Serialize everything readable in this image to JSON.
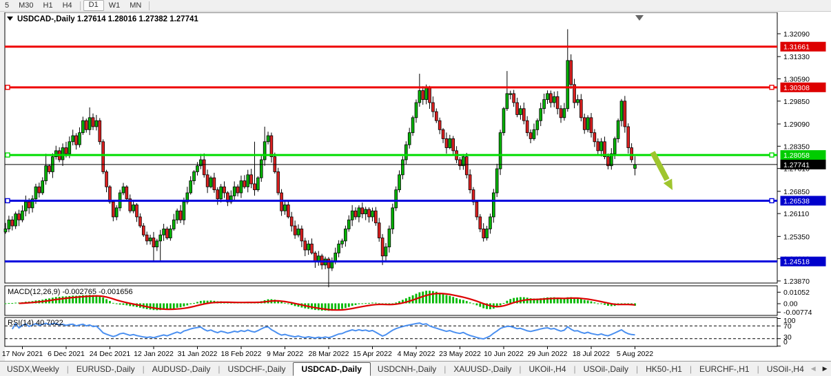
{
  "toolbar": {
    "timeframes": [
      "5",
      "M30",
      "H1",
      "H4",
      "D1",
      "W1",
      "MN"
    ],
    "active": "D1"
  },
  "chart": {
    "symbol": "USDCAD-,Daily",
    "ohlc_display": "1.27614 1.28016 1.27382 1.27741",
    "title_arrow_icon": "down-triangle",
    "shift_marker_icon": "down-triangle"
  },
  "chart_data": {
    "type": "candlestick",
    "symbol": "USDCAD",
    "timeframe": "Daily",
    "x_labels": [
      "17 Nov 2021",
      "6 Dec 2021",
      "24 Dec 2021",
      "12 Jan 2022",
      "31 Jan 2022",
      "18 Feb 2022",
      "9 Mar 2022",
      "28 Mar 2022",
      "15 Apr 2022",
      "4 May 2022",
      "23 May 2022",
      "10 Jun 2022",
      "29 Jun 2022",
      "18 Jul 2022",
      "5 Aug 2022"
    ],
    "y_ticks": [
      1.3209,
      1.3133,
      1.3059,
      1.2985,
      1.2909,
      1.2835,
      1.2761,
      1.2685,
      1.2611,
      1.2535,
      1.2461,
      1.2387
    ],
    "ylim": [
      1.2345,
      1.324
    ],
    "closes": [
      1.256,
      1.259,
      1.257,
      1.261,
      1.259,
      1.262,
      1.265,
      1.263,
      1.266,
      1.27,
      1.268,
      1.272,
      1.277,
      1.275,
      1.28,
      1.282,
      1.279,
      1.283,
      1.281,
      1.285,
      1.287,
      1.284,
      1.288,
      1.292,
      1.289,
      1.293,
      1.29,
      1.292,
      1.285,
      1.275,
      1.27,
      1.265,
      1.26,
      1.263,
      1.268,
      1.27,
      1.266,
      1.262,
      1.264,
      1.26,
      1.257,
      1.254,
      1.252,
      1.253,
      1.25,
      1.252,
      1.254,
      1.256,
      1.253,
      1.256,
      1.259,
      1.262,
      1.259,
      1.265,
      1.268,
      1.272,
      1.275,
      1.277,
      1.279,
      1.274,
      1.27,
      1.273,
      1.269,
      1.266,
      1.27,
      1.268,
      1.265,
      1.267,
      1.27,
      1.268,
      1.272,
      1.27,
      1.274,
      1.271,
      1.269,
      1.273,
      1.279,
      1.285,
      1.287,
      1.28,
      1.275,
      1.268,
      1.262,
      1.264,
      1.26,
      1.257,
      1.254,
      1.256,
      1.252,
      1.249,
      1.251,
      1.248,
      1.245,
      1.247,
      1.244,
      1.246,
      1.243,
      1.245,
      1.248,
      1.251,
      1.252,
      1.256,
      1.259,
      1.262,
      1.26,
      1.263,
      1.261,
      1.2625,
      1.26,
      1.262,
      1.258,
      1.253,
      1.247,
      1.25,
      1.256,
      1.263,
      1.269,
      1.274,
      1.279,
      1.284,
      1.288,
      1.293,
      1.298,
      1.302,
      1.299,
      1.303,
      1.298,
      1.295,
      1.292,
      1.289,
      1.286,
      1.283,
      1.286,
      1.282,
      1.279,
      1.277,
      1.28,
      1.274,
      1.269,
      1.265,
      1.26,
      1.256,
      1.253,
      1.256,
      1.26,
      1.268,
      1.276,
      1.288,
      1.296,
      1.301,
      1.301,
      1.298,
      1.294,
      1.296,
      1.292,
      1.288,
      1.286,
      1.289,
      1.292,
      1.296,
      1.299,
      1.301,
      1.298,
      1.3,
      1.296,
      1.293,
      1.296,
      1.312,
      1.304,
      1.298,
      1.299,
      1.293,
      1.289,
      1.293,
      1.288,
      1.285,
      1.282,
      1.285,
      1.28,
      1.277,
      1.281,
      1.286,
      1.292,
      1.2985,
      1.29,
      1.283,
      1.279,
      1.2774
    ],
    "wick_overrides": {
      "12": {
        "h": 1.281
      },
      "25": {
        "h": 1.2964
      },
      "44": {
        "l": 1.245
      },
      "46": {
        "l": 1.2455
      },
      "74": {
        "h": 1.285
      },
      "77": {
        "h": 1.29
      },
      "96": {
        "l": 1.2366
      },
      "112": {
        "l": 1.244
      },
      "123": {
        "h": 1.3076
      },
      "142": {
        "l": 1.2518
      },
      "149": {
        "h": 1.3085
      },
      "167": {
        "h": 1.3224
      },
      "179": {
        "l": 1.2758
      },
      "183": {
        "h": 1.2992
      }
    },
    "last_candle": {
      "open": 1.27614,
      "high": 1.28016,
      "low": 1.27382,
      "close": 1.27741
    },
    "current_price": "1.27741",
    "hlines": [
      {
        "price": 1.31661,
        "label": "1.31661",
        "color": "#ee0000",
        "badge": "#dd0000",
        "width": 3,
        "anchors": []
      },
      {
        "price": 1.30308,
        "label": "1.30308",
        "color": "#ee0000",
        "badge": "#dd0000",
        "width": 3,
        "anchors": [
          "left",
          "right"
        ]
      },
      {
        "price": 1.28058,
        "label": "1.28058",
        "color": "#00dd00",
        "badge": "#00cc00",
        "width": 3,
        "anchors": [
          "left",
          "right"
        ]
      },
      {
        "price": 1.26538,
        "label": "1.26538",
        "color": "#0000dd",
        "badge": "#0000cc",
        "width": 3,
        "anchors": [
          "left",
          "right"
        ]
      },
      {
        "price": 1.24518,
        "label": "1.24518",
        "color": "#0000dd",
        "badge": "#0000cc",
        "width": 3,
        "anchors": []
      }
    ],
    "arrow": {
      "from": [
        947,
        221
      ],
      "to": [
        976,
        276
      ],
      "color": "#9fc52e"
    },
    "macd": {
      "name": "MACD",
      "params": [
        12,
        26,
        9
      ],
      "label": "MACD(12,26,9)",
      "value_main": "-0.002765",
      "value_signal": "-0.001656",
      "axis_labels": [
        "0.01052",
        "0.00",
        "-0.00774"
      ],
      "axis_values": [
        0.01052,
        0.0,
        -0.00774
      ],
      "hist_color": "#00b800",
      "signal_color": "#dd0000"
    },
    "rsi": {
      "name": "RSI",
      "params": [
        14
      ],
      "label": "RSI(14)",
      "value": "40.7022",
      "axis_labels": [
        "100",
        "70",
        "30",
        "0"
      ],
      "levels": [
        70,
        30
      ],
      "line_color": "#4a8ff0"
    },
    "candle_up_color": "#00b400",
    "candle_down_color": "#dd2020",
    "legend_position": "top-left",
    "grid": false
  },
  "tabs": {
    "items": [
      "USDX,Weekly",
      "EURUSD-,Daily",
      "AUDUSD-,Daily",
      "USDCHF-,Daily",
      "USDCAD-,Daily",
      "USDCNH-,Daily",
      "XAUUSD-,Daily",
      "UKOil-,H4",
      "USOil-,Daily",
      "HK50-,H1",
      "EURCHF-,H1",
      "USOil-,H4"
    ],
    "active": "USDCAD-,Daily",
    "nav_left_icon": "left-triangle",
    "nav_right_icon": "right-triangle"
  }
}
